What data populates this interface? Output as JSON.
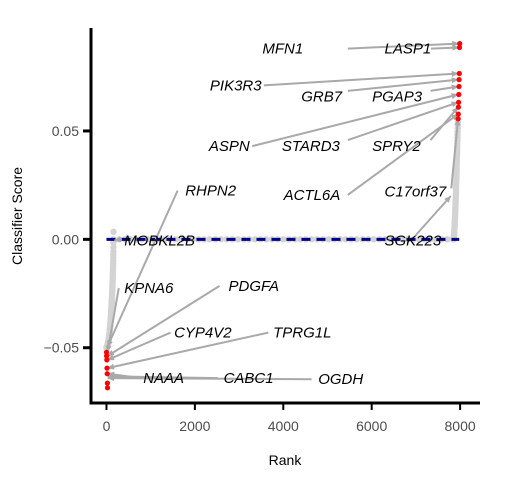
{
  "chart_data": {
    "type": "scatter",
    "xlabel": "Rank",
    "ylabel": "Classifier Score",
    "xlim": [
      -350,
      8450
    ],
    "ylim": [
      -0.0755,
      0.0975
    ],
    "x_ticks": [
      {
        "value": 0,
        "label": "0"
      },
      {
        "value": 2000,
        "label": "2000"
      },
      {
        "value": 4000,
        "label": "4000"
      },
      {
        "value": 6000,
        "label": "6000"
      },
      {
        "value": 8000,
        "label": "8000"
      }
    ],
    "y_ticks": [
      {
        "value": 0.05,
        "label": "0.05"
      },
      {
        "value": 0.0,
        "label": "0.00"
      },
      {
        "value": -0.05,
        "label": "−0.05"
      }
    ],
    "reference_line": {
      "y": 0,
      "style": "dashed",
      "color": "#00008b"
    },
    "colors": {
      "background_points": "#d3d3d3",
      "highlight_points": "#ff0000",
      "arrows": "#a9a9a9",
      "axes": "#000000"
    },
    "highlighted_top": [
      {
        "x": 7990,
        "y": 0.0903
      },
      {
        "x": 7986,
        "y": 0.0885
      },
      {
        "x": 7982,
        "y": 0.0765
      },
      {
        "x": 7978,
        "y": 0.0737
      },
      {
        "x": 7974,
        "y": 0.0705
      },
      {
        "x": 7970,
        "y": 0.0668
      },
      {
        "x": 7966,
        "y": 0.0632
      },
      {
        "x": 7962,
        "y": 0.061
      },
      {
        "x": 7958,
        "y": 0.0578
      },
      {
        "x": 7954,
        "y": 0.0556
      }
    ],
    "highlighted_bottom": [
      {
        "x": 0,
        "y": -0.0521
      },
      {
        "x": 4,
        "y": -0.0538
      },
      {
        "x": 8,
        "y": -0.0556
      },
      {
        "x": 12,
        "y": -0.0594
      },
      {
        "x": 16,
        "y": -0.062
      },
      {
        "x": 20,
        "y": -0.0663
      },
      {
        "x": 24,
        "y": -0.0685
      }
    ],
    "annotations": [
      {
        "label": "MFN1",
        "text_x": 4450,
        "text_y": 0.088,
        "anchor": "end",
        "arrow_from": [
          5460,
          0.088
        ],
        "arrow_to": [
          7970,
          0.0903
        ]
      },
      {
        "label": "LASP1",
        "text_x": 6290,
        "text_y": 0.088,
        "anchor": "start",
        "arrow_from": [
          7340,
          0.088
        ],
        "arrow_to": [
          7970,
          0.0885
        ]
      },
      {
        "label": "PIK3R3",
        "text_x": 3510,
        "text_y": 0.071,
        "anchor": "end",
        "arrow_from": [
          3560,
          0.071
        ],
        "arrow_to": [
          7960,
          0.0765
        ]
      },
      {
        "label": "GRB7",
        "text_x": 5330,
        "text_y": 0.066,
        "anchor": "end",
        "arrow_from": [
          5460,
          0.0685
        ],
        "arrow_to": [
          7960,
          0.0737
        ]
      },
      {
        "label": "PGAP3",
        "text_x": 6010,
        "text_y": 0.066,
        "anchor": "start",
        "arrow_from": [
          7330,
          0.0685
        ],
        "arrow_to": [
          7960,
          0.0705
        ]
      },
      {
        "label": "ASPN",
        "text_x": 3240,
        "text_y": 0.043,
        "anchor": "end",
        "arrow_from": [
          3300,
          0.043
        ],
        "arrow_to": [
          7955,
          0.0668
        ]
      },
      {
        "label": "STARD3",
        "text_x": 5280,
        "text_y": 0.043,
        "anchor": "end",
        "arrow_from": [
          5460,
          0.0458
        ],
        "arrow_to": [
          7955,
          0.0632
        ]
      },
      {
        "label": "SPRY2",
        "text_x": 6010,
        "text_y": 0.043,
        "anchor": "start",
        "arrow_from": [
          7330,
          0.0458
        ],
        "arrow_to": [
          7955,
          0.061
        ]
      },
      {
        "label": "ACTL6A",
        "text_x": 5290,
        "text_y": 0.0205,
        "anchor": "end",
        "arrow_from": [
          5460,
          0.0205
        ],
        "arrow_to": [
          7955,
          0.0578
        ]
      },
      {
        "label": "C17orf37",
        "text_x": 6290,
        "text_y": 0.022,
        "anchor": "start",
        "arrow_from": [
          7800,
          0.0235
        ],
        "arrow_to": [
          7955,
          0.0556
        ]
      },
      {
        "label": "SGK223",
        "text_x": 6290,
        "text_y": -0.0005,
        "anchor": "start",
        "arrow_from": [
          7000,
          0.002
        ],
        "arrow_to": [
          7790,
          0.02
        ]
      },
      {
        "label": "RHPN2",
        "text_x": 1780,
        "text_y": 0.0225,
        "anchor": "start",
        "arrow_from": [
          1610,
          0.0225
        ],
        "arrow_to": [
          20,
          -0.0496
        ]
      },
      {
        "label": "MOBKL2B",
        "text_x": 400,
        "text_y": -0.0005,
        "anchor": "start",
        "arrow_from": [
          350,
          0.0
        ],
        "arrow_to": [
          180,
          -0.0005
        ]
      },
      {
        "label": "KPNA6",
        "text_x": 400,
        "text_y": -0.0225,
        "anchor": "start",
        "arrow_from": [
          280,
          -0.0225
        ],
        "arrow_to": [
          20,
          -0.0521
        ]
      },
      {
        "label": "PDGFA",
        "text_x": 2760,
        "text_y": -0.0215,
        "anchor": "start",
        "arrow_from": [
          2560,
          -0.0215
        ],
        "arrow_to": [
          24,
          -0.0538
        ]
      },
      {
        "label": "CYP4V2",
        "text_x": 1530,
        "text_y": -0.043,
        "anchor": "start",
        "arrow_from": [
          1450,
          -0.043
        ],
        "arrow_to": [
          24,
          -0.0556
        ]
      },
      {
        "label": "TPRG1L",
        "text_x": 3770,
        "text_y": -0.043,
        "anchor": "start",
        "arrow_from": [
          3660,
          -0.043
        ],
        "arrow_to": [
          24,
          -0.0594
        ]
      },
      {
        "label": "NAAA",
        "text_x": 830,
        "text_y": -0.064,
        "anchor": "start",
        "arrow_from": [
          780,
          -0.064
        ],
        "arrow_to": [
          28,
          -0.062
        ]
      },
      {
        "label": "CABC1",
        "text_x": 2650,
        "text_y": -0.064,
        "anchor": "start",
        "arrow_from": [
          2520,
          -0.064
        ],
        "arrow_to": [
          28,
          -0.0632
        ]
      },
      {
        "label": "OGDH",
        "text_x": 4790,
        "text_y": -0.0645,
        "anchor": "start",
        "arrow_from": [
          4640,
          -0.0645
        ],
        "arrow_to": [
          28,
          -0.064
        ]
      }
    ]
  }
}
